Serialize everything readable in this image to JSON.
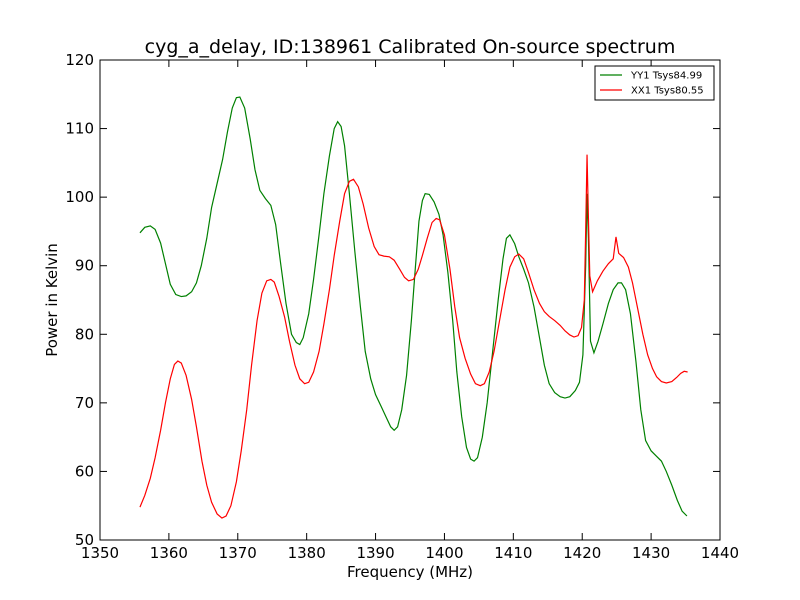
{
  "chart_data": {
    "type": "line",
    "title": "cyg_a_delay, ID:138961 Calibrated On-source spectrum",
    "xlabel": "Frequency (MHz)",
    "ylabel": "Power in Kelvin",
    "xlim": [
      1350,
      1440
    ],
    "ylim": [
      50,
      120
    ],
    "xticks": [
      1350,
      1360,
      1370,
      1380,
      1390,
      1400,
      1410,
      1420,
      1430,
      1440
    ],
    "yticks": [
      50,
      60,
      70,
      80,
      90,
      100,
      110,
      120
    ],
    "grid": false,
    "legend_position": "top-right",
    "series": [
      {
        "name": "YY1 Tsys84.99",
        "color": "#008000",
        "points": [
          [
            1355.8,
            94.8
          ],
          [
            1356.5,
            95.6
          ],
          [
            1357.3,
            95.8
          ],
          [
            1358.0,
            95.3
          ],
          [
            1358.8,
            93.3
          ],
          [
            1359.5,
            90.3
          ],
          [
            1360.2,
            87.3
          ],
          [
            1361.0,
            85.8
          ],
          [
            1361.8,
            85.5
          ],
          [
            1362.5,
            85.6
          ],
          [
            1363.3,
            86.2
          ],
          [
            1364.0,
            87.5
          ],
          [
            1364.7,
            90.0
          ],
          [
            1365.5,
            94.0
          ],
          [
            1366.2,
            98.5
          ],
          [
            1367.0,
            102.0
          ],
          [
            1367.8,
            105.5
          ],
          [
            1368.5,
            109.5
          ],
          [
            1369.2,
            113.0
          ],
          [
            1369.8,
            114.5
          ],
          [
            1370.3,
            114.6
          ],
          [
            1371.0,
            113.0
          ],
          [
            1371.8,
            108.5
          ],
          [
            1372.5,
            104.0
          ],
          [
            1373.2,
            101.0
          ],
          [
            1374.0,
            99.8
          ],
          [
            1374.8,
            98.8
          ],
          [
            1375.5,
            96.0
          ],
          [
            1376.2,
            90.5
          ],
          [
            1377.0,
            84.5
          ],
          [
            1377.8,
            80.0
          ],
          [
            1378.5,
            78.8
          ],
          [
            1379.0,
            78.5
          ],
          [
            1379.5,
            79.5
          ],
          [
            1380.3,
            83.0
          ],
          [
            1381.0,
            88.0
          ],
          [
            1381.8,
            94.5
          ],
          [
            1382.5,
            100.5
          ],
          [
            1383.3,
            106.0
          ],
          [
            1384.0,
            110.0
          ],
          [
            1384.5,
            111.0
          ],
          [
            1385.0,
            110.3
          ],
          [
            1385.5,
            107.5
          ],
          [
            1386.2,
            100.5
          ],
          [
            1387.0,
            92.0
          ],
          [
            1387.8,
            84.0
          ],
          [
            1388.5,
            77.5
          ],
          [
            1389.3,
            73.5
          ],
          [
            1390.0,
            71.2
          ],
          [
            1390.8,
            69.5
          ],
          [
            1391.5,
            68.0
          ],
          [
            1392.2,
            66.5
          ],
          [
            1392.7,
            66.0
          ],
          [
            1393.2,
            66.5
          ],
          [
            1393.8,
            69.0
          ],
          [
            1394.5,
            74.0
          ],
          [
            1395.2,
            82.0
          ],
          [
            1395.8,
            90.0
          ],
          [
            1396.3,
            96.5
          ],
          [
            1396.8,
            99.5
          ],
          [
            1397.2,
            100.5
          ],
          [
            1397.8,
            100.4
          ],
          [
            1398.5,
            99.3
          ],
          [
            1399.2,
            97.5
          ],
          [
            1399.8,
            94.5
          ],
          [
            1400.5,
            89.0
          ],
          [
            1401.2,
            82.0
          ],
          [
            1401.8,
            74.5
          ],
          [
            1402.5,
            68.0
          ],
          [
            1403.2,
            63.5
          ],
          [
            1403.8,
            61.8
          ],
          [
            1404.3,
            61.5
          ],
          [
            1404.8,
            62.0
          ],
          [
            1405.5,
            65.0
          ],
          [
            1406.2,
            70.0
          ],
          [
            1407.0,
            77.5
          ],
          [
            1407.8,
            85.0
          ],
          [
            1408.5,
            91.0
          ],
          [
            1409.0,
            94.0
          ],
          [
            1409.5,
            94.5
          ],
          [
            1410.2,
            93.2
          ],
          [
            1410.8,
            91.3
          ],
          [
            1411.5,
            89.5
          ],
          [
            1412.2,
            87.5
          ],
          [
            1413.0,
            84.0
          ],
          [
            1413.8,
            79.5
          ],
          [
            1414.5,
            75.5
          ],
          [
            1415.2,
            72.8
          ],
          [
            1416.0,
            71.5
          ],
          [
            1416.8,
            70.9
          ],
          [
            1417.5,
            70.7
          ],
          [
            1418.2,
            70.9
          ],
          [
            1419.0,
            71.8
          ],
          [
            1419.6,
            73.0
          ],
          [
            1420.1,
            77.0
          ],
          [
            1420.5,
            90.0
          ],
          [
            1420.7,
            100.5
          ],
          [
            1420.9,
            94.0
          ],
          [
            1421.2,
            79.0
          ],
          [
            1421.7,
            77.3
          ],
          [
            1422.3,
            79.0
          ],
          [
            1423.0,
            81.5
          ],
          [
            1423.8,
            84.5
          ],
          [
            1424.5,
            86.5
          ],
          [
            1425.2,
            87.5
          ],
          [
            1425.7,
            87.5
          ],
          [
            1426.3,
            86.5
          ],
          [
            1427.0,
            83.0
          ],
          [
            1427.8,
            76.0
          ],
          [
            1428.5,
            69.0
          ],
          [
            1429.2,
            64.5
          ],
          [
            1430.0,
            63.0
          ],
          [
            1430.7,
            62.3
          ],
          [
            1431.5,
            61.5
          ],
          [
            1432.2,
            60.0
          ],
          [
            1433.0,
            58.0
          ],
          [
            1433.8,
            55.8
          ],
          [
            1434.5,
            54.2
          ],
          [
            1435.2,
            53.5
          ]
        ]
      },
      {
        "name": "XX1 Tsys80.55",
        "color": "#ff0000",
        "points": [
          [
            1355.8,
            54.8
          ],
          [
            1356.5,
            56.5
          ],
          [
            1357.3,
            59.0
          ],
          [
            1358.0,
            62.0
          ],
          [
            1358.8,
            66.0
          ],
          [
            1359.5,
            70.0
          ],
          [
            1360.2,
            73.5
          ],
          [
            1360.8,
            75.6
          ],
          [
            1361.3,
            76.1
          ],
          [
            1361.8,
            75.8
          ],
          [
            1362.5,
            74.0
          ],
          [
            1363.3,
            70.5
          ],
          [
            1364.0,
            66.5
          ],
          [
            1364.8,
            61.5
          ],
          [
            1365.5,
            58.0
          ],
          [
            1366.2,
            55.5
          ],
          [
            1367.0,
            53.8
          ],
          [
            1367.7,
            53.2
          ],
          [
            1368.3,
            53.5
          ],
          [
            1369.0,
            55.0
          ],
          [
            1369.8,
            58.5
          ],
          [
            1370.5,
            63.0
          ],
          [
            1371.3,
            69.0
          ],
          [
            1372.0,
            75.5
          ],
          [
            1372.8,
            82.0
          ],
          [
            1373.5,
            86.0
          ],
          [
            1374.2,
            87.8
          ],
          [
            1374.8,
            88.0
          ],
          [
            1375.3,
            87.6
          ],
          [
            1376.0,
            85.5
          ],
          [
            1376.8,
            82.5
          ],
          [
            1377.5,
            79.0
          ],
          [
            1378.3,
            75.5
          ],
          [
            1379.0,
            73.5
          ],
          [
            1379.7,
            72.8
          ],
          [
            1380.3,
            73.0
          ],
          [
            1381.0,
            74.5
          ],
          [
            1381.8,
            77.5
          ],
          [
            1382.5,
            81.5
          ],
          [
            1383.3,
            86.5
          ],
          [
            1384.0,
            91.5
          ],
          [
            1384.8,
            96.5
          ],
          [
            1385.5,
            100.5
          ],
          [
            1386.2,
            102.3
          ],
          [
            1386.8,
            102.6
          ],
          [
            1387.5,
            101.5
          ],
          [
            1388.2,
            99.0
          ],
          [
            1389.0,
            95.5
          ],
          [
            1389.8,
            92.8
          ],
          [
            1390.5,
            91.6
          ],
          [
            1391.2,
            91.4
          ],
          [
            1392.0,
            91.3
          ],
          [
            1392.7,
            90.8
          ],
          [
            1393.5,
            89.5
          ],
          [
            1394.2,
            88.3
          ],
          [
            1394.8,
            87.8
          ],
          [
            1395.5,
            88.0
          ],
          [
            1396.2,
            89.5
          ],
          [
            1396.8,
            91.5
          ],
          [
            1397.5,
            94.0
          ],
          [
            1398.2,
            96.3
          ],
          [
            1398.8,
            96.9
          ],
          [
            1399.3,
            96.7
          ],
          [
            1400.0,
            94.5
          ],
          [
            1400.8,
            89.5
          ],
          [
            1401.5,
            84.0
          ],
          [
            1402.2,
            79.5
          ],
          [
            1403.0,
            76.5
          ],
          [
            1403.8,
            74.2
          ],
          [
            1404.5,
            72.8
          ],
          [
            1405.2,
            72.5
          ],
          [
            1405.8,
            72.8
          ],
          [
            1406.5,
            74.5
          ],
          [
            1407.2,
            77.5
          ],
          [
            1408.0,
            82.0
          ],
          [
            1408.8,
            86.5
          ],
          [
            1409.5,
            89.8
          ],
          [
            1410.2,
            91.3
          ],
          [
            1410.8,
            91.7
          ],
          [
            1411.5,
            91.0
          ],
          [
            1412.2,
            89.0
          ],
          [
            1413.0,
            86.5
          ],
          [
            1413.8,
            84.5
          ],
          [
            1414.5,
            83.3
          ],
          [
            1415.2,
            82.6
          ],
          [
            1416.0,
            82.0
          ],
          [
            1416.8,
            81.3
          ],
          [
            1417.5,
            80.5
          ],
          [
            1418.2,
            79.9
          ],
          [
            1418.8,
            79.6
          ],
          [
            1419.4,
            79.8
          ],
          [
            1419.9,
            81.0
          ],
          [
            1420.3,
            85.0
          ],
          [
            1420.5,
            95.0
          ],
          [
            1420.7,
            106.2
          ],
          [
            1420.9,
            97.0
          ],
          [
            1421.1,
            88.5
          ],
          [
            1421.5,
            86.2
          ],
          [
            1422.2,
            87.8
          ],
          [
            1423.0,
            89.2
          ],
          [
            1423.8,
            90.3
          ],
          [
            1424.5,
            91.0
          ],
          [
            1424.9,
            94.2
          ],
          [
            1425.3,
            91.8
          ],
          [
            1426.0,
            91.2
          ],
          [
            1426.7,
            89.8
          ],
          [
            1427.3,
            87.5
          ],
          [
            1428.0,
            84.0
          ],
          [
            1428.8,
            80.0
          ],
          [
            1429.5,
            77.0
          ],
          [
            1430.2,
            75.0
          ],
          [
            1430.8,
            73.8
          ],
          [
            1431.5,
            73.1
          ],
          [
            1432.2,
            72.9
          ],
          [
            1433.0,
            73.1
          ],
          [
            1433.7,
            73.7
          ],
          [
            1434.3,
            74.3
          ],
          [
            1434.8,
            74.6
          ],
          [
            1435.3,
            74.5
          ]
        ]
      }
    ]
  }
}
